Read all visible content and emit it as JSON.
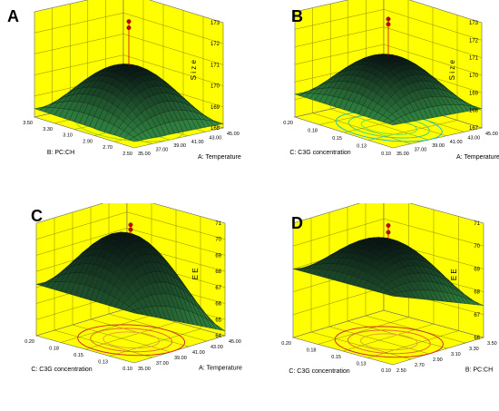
{
  "chart_data": [
    {
      "type": "surface3d",
      "panel_label": "A",
      "zlabel": "S i z e",
      "zticks": [
        "168",
        "169",
        "170",
        "171",
        "172",
        "173"
      ],
      "xlabel": "B: PC:CH",
      "xticks": [
        "2.50",
        "2.70",
        "2.90",
        "3.10",
        "3.30",
        "3.50"
      ],
      "ylabel": "A: Temperature",
      "yticks": [
        "35.00",
        "37.00",
        "39.00",
        "41.00",
        "43.00",
        "45.00"
      ],
      "surface_corner_values": [
        168.3,
        168.4,
        168.3,
        168.2
      ],
      "surface_peak": 170.7,
      "design_point_marker_values": [
        172.8,
        172.5
      ],
      "contours": "yellow/green contour ellipses on base"
    },
    {
      "type": "surface3d",
      "panel_label": "B",
      "zlabel": "S i z e",
      "zticks": [
        "167",
        "168",
        "169",
        "170",
        "171",
        "172",
        "173"
      ],
      "xlabel": "C: C3G concentration",
      "xticks": [
        "0.10",
        "0.13",
        "0.15",
        "0.18",
        "0.20"
      ],
      "ylabel": "A: Temperature",
      "yticks": [
        "35.00",
        "37.00",
        "39.00",
        "41.00",
        "43.00",
        "45.00"
      ],
      "surface_corner_values": [
        168.3,
        168.3,
        168.2,
        168.1
      ],
      "surface_peak": 170.8,
      "design_point_marker_values": [
        172.9,
        172.6
      ],
      "contours": "cyan/green contour ellipses on base"
    },
    {
      "type": "surface3d",
      "panel_label": "C",
      "zlabel": "E E",
      "zticks": [
        "64",
        "65",
        "66",
        "67",
        "68",
        "69",
        "70",
        "71"
      ],
      "xlabel": "C: C3G concentration",
      "xticks": [
        "0.10",
        "0.13",
        "0.15",
        "0.18",
        "0.20"
      ],
      "ylabel": "A: Temperature",
      "yticks": [
        "35.00",
        "37.00",
        "39.00",
        "41.00",
        "43.00",
        "45.00"
      ],
      "surface_corner_values": [
        67.1,
        67.2,
        66.8,
        64.3
      ],
      "surface_peak": 70.3,
      "design_point_marker_values": [
        70.9,
        70.6
      ],
      "contours": "red/orange contour ellipses on base"
    },
    {
      "type": "surface3d",
      "panel_label": "D",
      "zlabel": "E E",
      "zticks": [
        "66",
        "67",
        "68",
        "69",
        "70",
        "71"
      ],
      "xlabel": "C: C3G concentration",
      "xticks": [
        "0.10",
        "0.13",
        "0.15",
        "0.18",
        "0.20"
      ],
      "ylabel": "B: PC:CH",
      "yticks": [
        "2.50",
        "2.70",
        "2.90",
        "3.10",
        "3.30",
        "3.50"
      ],
      "surface_corner_values": [
        69.0,
        69.0,
        68.2,
        67.4
      ],
      "surface_peak": 70.3,
      "design_point_marker_values": [
        70.9,
        70.6
      ],
      "contours": "red/orange contour ellipses on base"
    }
  ],
  "style": {
    "background": "#ffffff",
    "face_fill": "#ffff00",
    "grid_color": "#8a8a00",
    "surface_dark": "#000000",
    "surface_light": "#2a8a3a",
    "marker_color": "#cc0000"
  }
}
